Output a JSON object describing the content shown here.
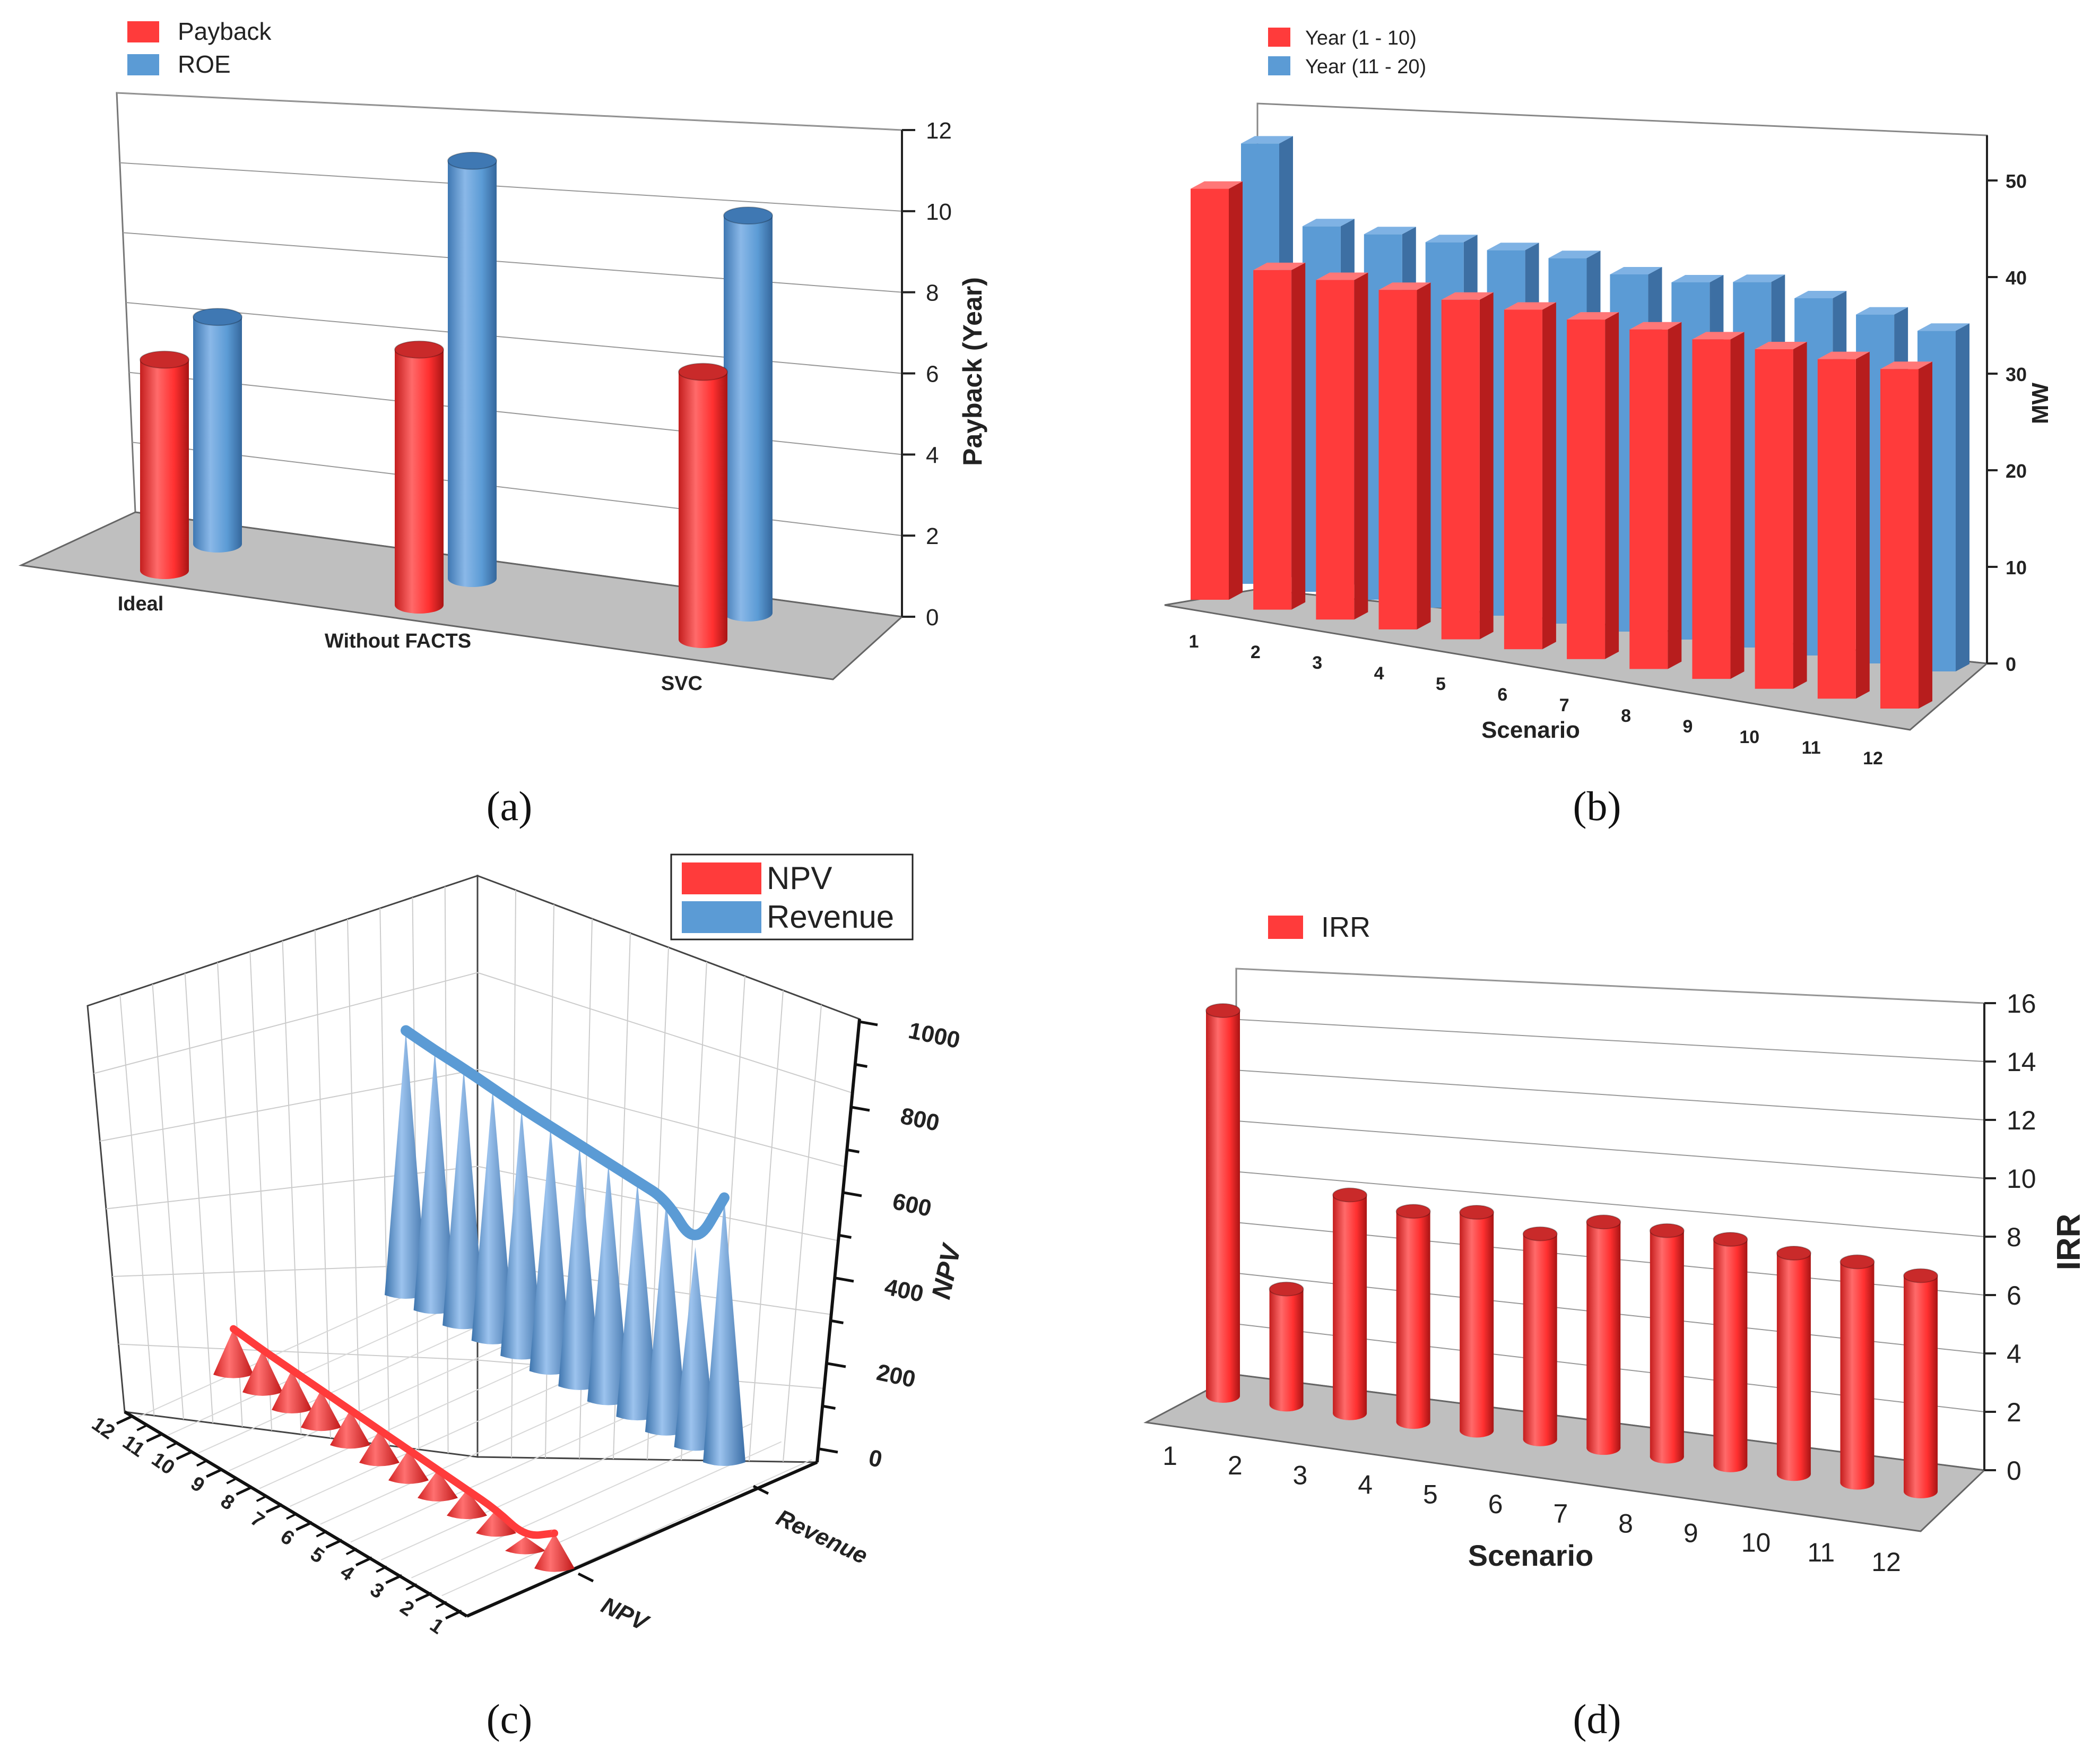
{
  "panels": [
    {
      "letter_text": "(a)"
    },
    {
      "letter_text": "(b)"
    },
    {
      "letter_text": "(c)"
    },
    {
      "letter_text": "(d)"
    }
  ],
  "colors": {
    "red": "#ff3b3b",
    "blue": "#5b9bd5",
    "floor": "#bfbfbf"
  },
  "chart_data": [
    {
      "type": "bar",
      "categories": [
        "Ideal",
        "Without FACTS",
        "SVC"
      ],
      "series": [
        {
          "name": "Payback",
          "color": "#ff3b3b",
          "values": [
            5.2,
            6.3,
            6.6
          ]
        },
        {
          "name": "ROE",
          "color": "#5b9bd5",
          "values": [
            5.6,
            10.3,
            9.8
          ]
        }
      ],
      "ylabel": "Payback (Year)",
      "ylim": [
        0,
        12
      ],
      "yticks": [
        "0",
        "2",
        "4",
        "6",
        "8",
        "10",
        "12"
      ],
      "legend": "top-left",
      "grid": true
    },
    {
      "type": "bar",
      "categories": [
        "1",
        "2",
        "3",
        "4",
        "5",
        "6",
        "7",
        "8",
        "9",
        "10",
        "11",
        "12"
      ],
      "series": [
        {
          "name": "Year (1 - 10)",
          "color": "#ff3b3b",
          "values": [
            46,
            38,
            38,
            38,
            38,
            38,
            38,
            38,
            38,
            38,
            38,
            38
          ]
        },
        {
          "name": "Year (11 - 20)",
          "color": "#5b9bd5",
          "values": [
            53,
            44,
            44,
            44,
            44,
            44,
            43,
            43,
            44,
            43,
            42,
            41
          ]
        }
      ],
      "xlabel": "Scenario",
      "ylabel": "MW",
      "ylim": [
        0,
        55
      ],
      "yticks": [
        "0",
        "10",
        "20",
        "30",
        "40",
        "50"
      ],
      "legend": "top-left"
    },
    {
      "type": "area",
      "categories": [
        "1",
        "2",
        "3",
        "4",
        "5",
        "6",
        "7",
        "8",
        "9",
        "10",
        "11",
        "12"
      ],
      "category_labels": [
        "12",
        "11",
        "10",
        "9",
        "8",
        "7",
        "6",
        "5",
        "4",
        "3",
        "2",
        "1"
      ],
      "series": [
        {
          "name": "NPV",
          "color": "#ff3b3b",
          "values": [
            195,
            180,
            170,
            160,
            150,
            140,
            130,
            120,
            110,
            100,
            60,
            150
          ]
        },
        {
          "name": "Revenue",
          "color": "#5b9bd5",
          "values": [
            860,
            845,
            835,
            820,
            805,
            795,
            785,
            775,
            765,
            755,
            650,
            860
          ]
        }
      ],
      "depth_labels": [
        "NPV",
        "Revenue"
      ],
      "zlabel": "NPV",
      "zlim": [
        0,
        1000
      ],
      "zticks": [
        "0",
        "200",
        "400",
        "600",
        "800",
        "1000"
      ],
      "legend": "top-right"
    },
    {
      "type": "bar",
      "categories": [
        "1",
        "2",
        "3",
        "4",
        "5",
        "6",
        "7",
        "8",
        "9",
        "10",
        "11",
        "12"
      ],
      "series": [
        {
          "name": "IRR",
          "color": "#ff3b3b",
          "values": [
            15,
            4.5,
            8.5,
            8.2,
            8.5,
            8.0,
            8.8,
            8.8,
            8.8,
            8.6,
            8.6,
            8.4
          ]
        }
      ],
      "xlabel": "Scenario",
      "ylabel": "IRR",
      "ylim": [
        0,
        16
      ],
      "yticks": [
        "0",
        "2",
        "4",
        "6",
        "8",
        "10",
        "12",
        "14",
        "16"
      ],
      "legend": "top-left"
    }
  ]
}
